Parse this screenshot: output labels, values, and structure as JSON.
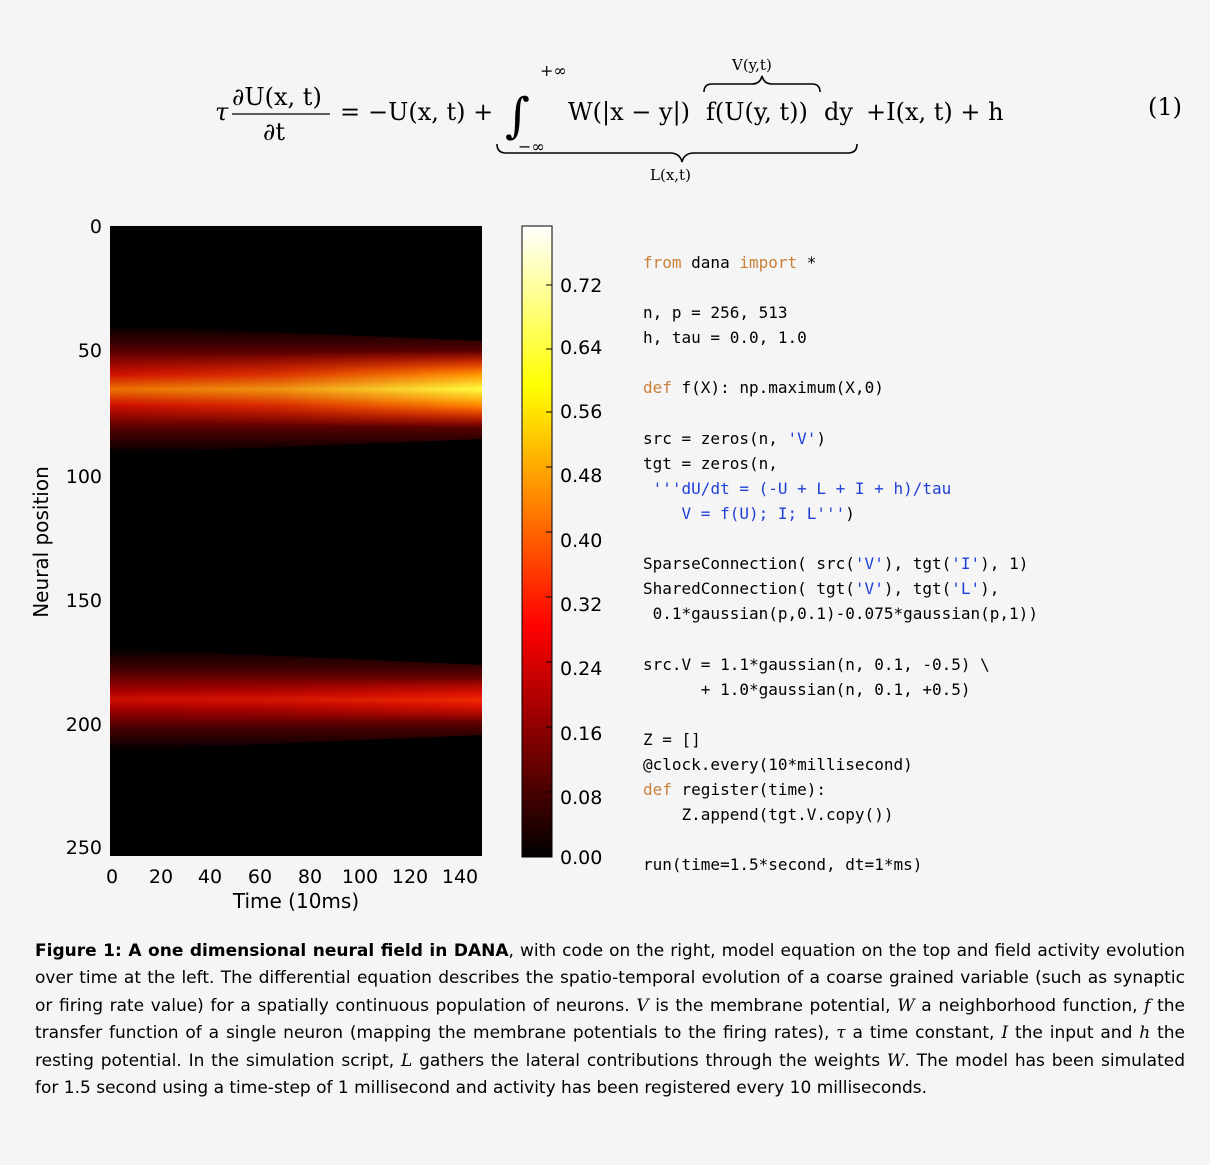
{
  "equation": {
    "tau": "τ",
    "lhs_num": "∂U(x, t)",
    "lhs_den": "∂t",
    "eq_sign": "=",
    "minus_u": "−U(x, t) +",
    "int_upper": "+∞",
    "int_lower": "−∞",
    "integral_sign": "∫",
    "kernel": "W(|x − y|)",
    "transfer": "f(U(y, t))",
    "dy": "dy",
    "overbrace_label": "V(y,t)",
    "underbrace_label": "L(x,t)",
    "tail": "+I(x, t) + h",
    "number": "(1)"
  },
  "heatmap": {
    "xlabel": "Time (10ms)",
    "ylabel": "Neural position",
    "x_ticks": [
      "0",
      "20",
      "40",
      "60",
      "80",
      "100",
      "120",
      "140"
    ],
    "y_ticks": [
      "0",
      "50",
      "100",
      "150",
      "200",
      "250"
    ]
  },
  "colorbar": {
    "ticks": [
      "0.00",
      "0.08",
      "0.16",
      "0.24",
      "0.32",
      "0.40",
      "0.48",
      "0.56",
      "0.64",
      "0.72"
    ]
  },
  "chart_data": {
    "type": "heatmap",
    "xlabel": "Time (10ms)",
    "ylabel": "Neural position",
    "xlim": [
      0,
      150
    ],
    "ylim": [
      256,
      0
    ],
    "colormap": "hot",
    "clim": [
      0.0,
      0.78
    ],
    "blobs": [
      {
        "center_position": 65,
        "start_width": 34,
        "end_width": 20,
        "start_value": 0.33,
        "end_value": 0.78
      },
      {
        "center_position": 197,
        "start_width": 30,
        "end_width": 18,
        "start_value": 0.3,
        "end_value": 0.42
      }
    ]
  },
  "code": [
    [
      {
        "t": "from",
        "c": "kw"
      },
      {
        "t": " dana "
      },
      {
        "t": "import",
        "c": "kw"
      },
      {
        "t": " *"
      }
    ],
    [
      {
        "t": ""
      }
    ],
    [
      {
        "t": "n, p = 256, 513"
      }
    ],
    [
      {
        "t": "h, tau = 0.0, 1.0"
      }
    ],
    [
      {
        "t": ""
      }
    ],
    [
      {
        "t": "def",
        "c": "kw"
      },
      {
        "t": " f(X): np.maximum(X,0)"
      }
    ],
    [
      {
        "t": ""
      }
    ],
    [
      {
        "t": "src = zeros(n, "
      },
      {
        "t": "'V'",
        "c": "str"
      },
      {
        "t": ")"
      }
    ],
    [
      {
        "t": "tgt = zeros(n,"
      }
    ],
    [
      {
        "t": " "
      },
      {
        "t": "'''dU/dt = (-U + L + I + h)/tau",
        "c": "str"
      }
    ],
    [
      {
        "t": "    "
      },
      {
        "t": "V = f(U); I; L'''",
        "c": "str"
      },
      {
        "t": ")"
      }
    ],
    [
      {
        "t": ""
      }
    ],
    [
      {
        "t": "SparseConnection( src("
      },
      {
        "t": "'V'",
        "c": "str"
      },
      {
        "t": "), tgt("
      },
      {
        "t": "'I'",
        "c": "str"
      },
      {
        "t": "), 1)"
      }
    ],
    [
      {
        "t": "SharedConnection( tgt("
      },
      {
        "t": "'V'",
        "c": "str"
      },
      {
        "t": "), tgt("
      },
      {
        "t": "'L'",
        "c": "str"
      },
      {
        "t": "),"
      }
    ],
    [
      {
        "t": " 0.1*gaussian(p,0.1)-0.075*gaussian(p,1))"
      }
    ],
    [
      {
        "t": ""
      }
    ],
    [
      {
        "t": "src.V = 1.1*gaussian(n, 0.1, -0.5) \\"
      }
    ],
    [
      {
        "t": "      + 1.0*gaussian(n, 0.1, +0.5)"
      }
    ],
    [
      {
        "t": ""
      }
    ],
    [
      {
        "t": "Z = []"
      }
    ],
    [
      {
        "t": "@clock.every(10*millisecond)"
      }
    ],
    [
      {
        "t": "def",
        "c": "kw"
      },
      {
        "t": " register(time):"
      }
    ],
    [
      {
        "t": "    Z.append(tgt.V.copy())"
      }
    ],
    [
      {
        "t": ""
      }
    ],
    [
      {
        "t": "run(time=1.5*second, dt=1*ms)"
      }
    ]
  ],
  "caption": {
    "label": "Figure 1: A one dimensional neural field in DANA",
    "text": [
      {
        "t": ", with code on the right, model equation on the top and field activity evolution over time at the left. The differential equation describes the spatio-temporal evolution of a coarse grained variable (such as synaptic or firing rate value) for a spatially continuous population of neurons. "
      },
      {
        "t": "V",
        "m": true
      },
      {
        "t": " is the membrane potential, "
      },
      {
        "t": "W",
        "m": true
      },
      {
        "t": " a neighborhood function, "
      },
      {
        "t": "f",
        "m": true
      },
      {
        "t": " the transfer function of a single neuron (mapping the membrane potentials to the firing rates), "
      },
      {
        "t": "τ",
        "m": true
      },
      {
        "t": " a time constant, "
      },
      {
        "t": "I",
        "m": true
      },
      {
        "t": " the input and "
      },
      {
        "t": "h",
        "m": true
      },
      {
        "t": " the resting potential. In the simulation script, "
      },
      {
        "t": "L",
        "m": true
      },
      {
        "t": " gathers the lateral contributions through the weights "
      },
      {
        "t": "W",
        "m": true
      },
      {
        "t": ". The model has been simulated for 1.5 second using a time-step of 1 millisecond and activity has been registered every 10 milliseconds."
      }
    ]
  }
}
